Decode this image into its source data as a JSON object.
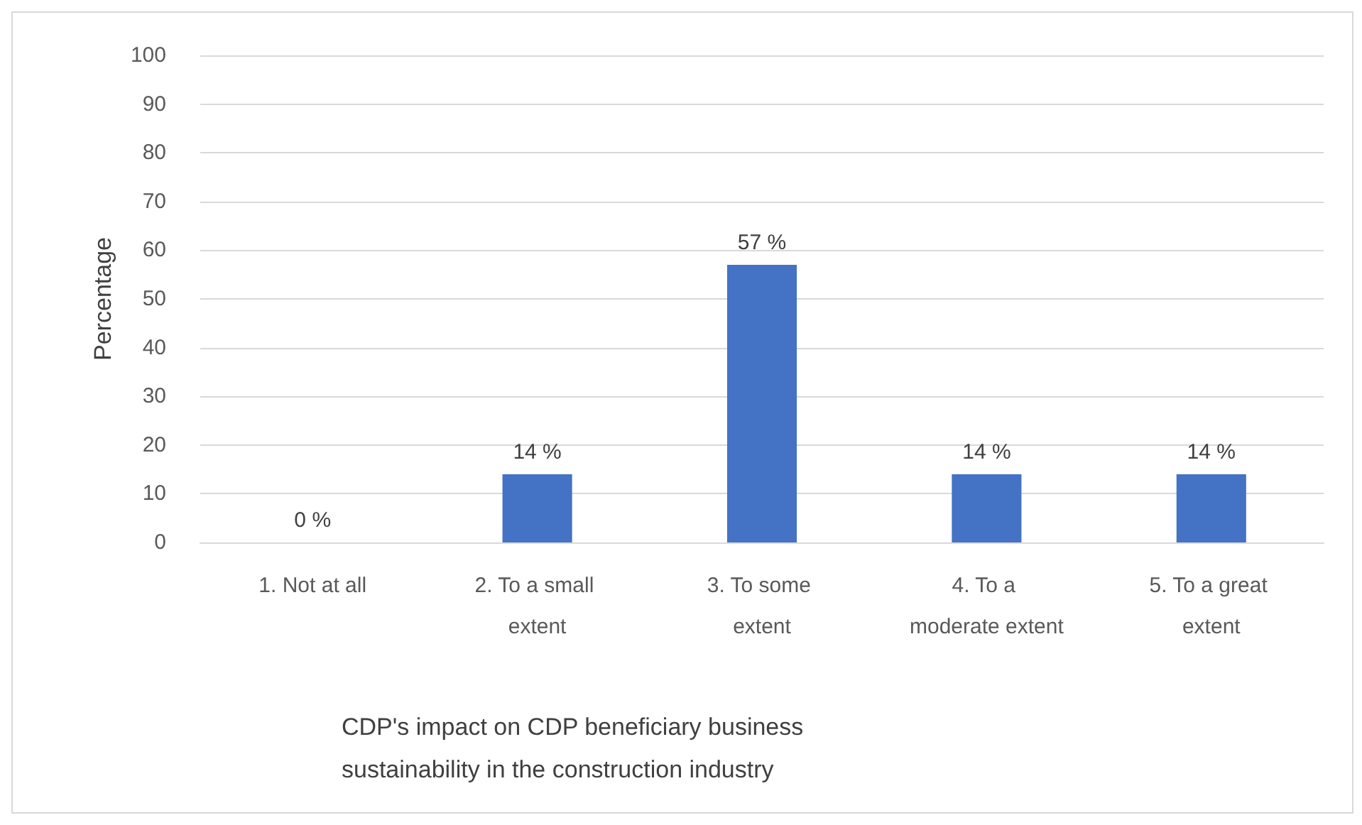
{
  "chart_data": {
    "type": "bar",
    "xlabel": "CDP's impact on CDP beneficiary business sustainability in the construction industry",
    "ylabel": "Percentage",
    "categories": [
      "1. Not at all",
      "2. To a small extent",
      "3. To some extent",
      "4. To a moderate extent",
      "5. To a great extent"
    ],
    "values": [
      0,
      14,
      57,
      14,
      14
    ],
    "value_labels": [
      "0 %",
      "14 %",
      "57 %",
      "14 %",
      "14 %"
    ],
    "color": "#4472c4",
    "ylim": [
      0,
      100
    ],
    "yticks": [
      0,
      10,
      20,
      30,
      40,
      50,
      60,
      70,
      80,
      90,
      100
    ],
    "grid": "y"
  }
}
